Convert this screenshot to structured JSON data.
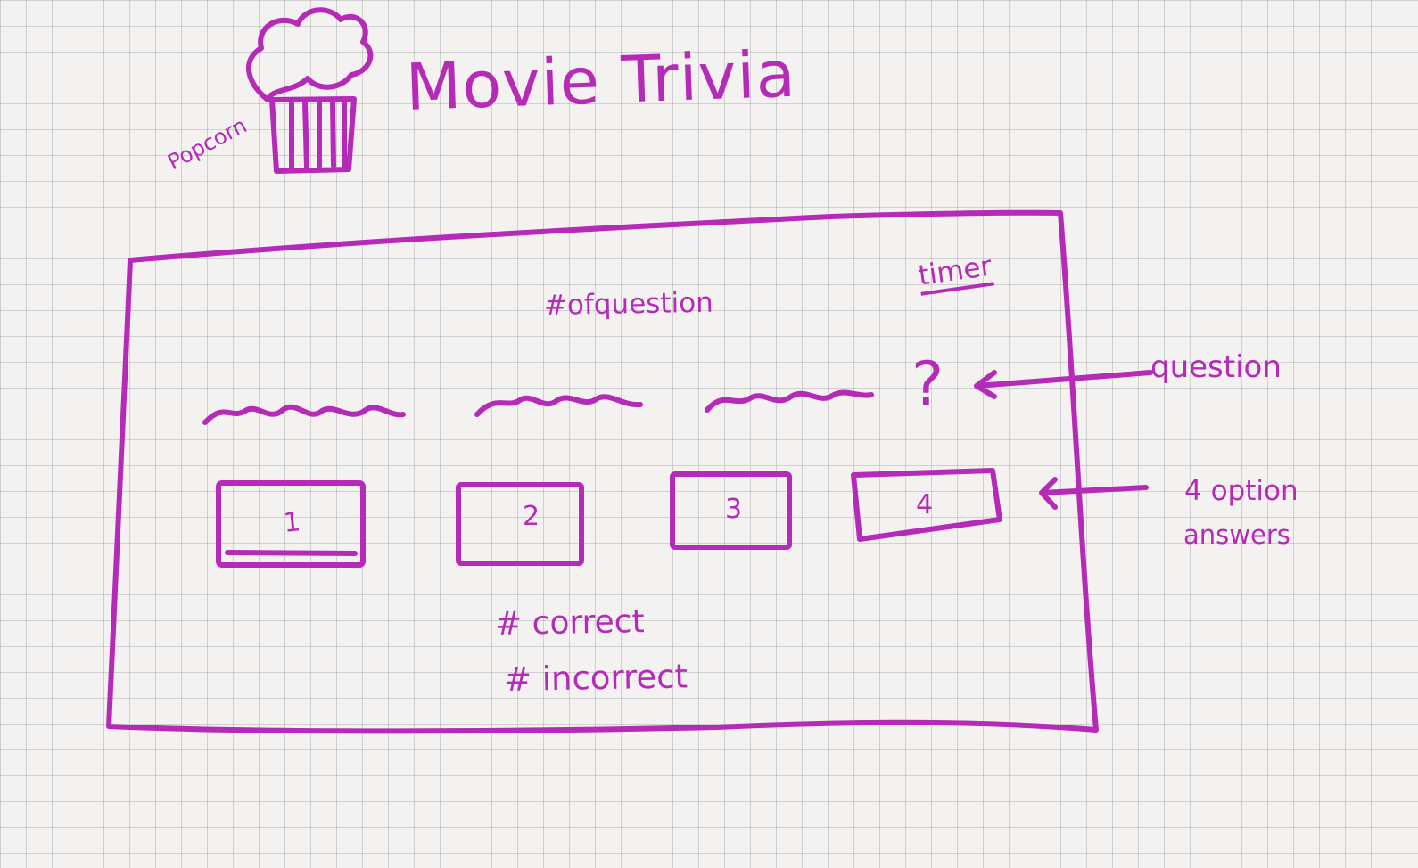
{
  "app": {
    "title": "Movie Trivia",
    "logo_label": "Popcorn"
  },
  "quiz_panel": {
    "question_count_label": "#ofquestion",
    "timer_label": "timer",
    "question_mark": "?",
    "options": [
      {
        "label": "1"
      },
      {
        "label": "2"
      },
      {
        "label": "3"
      },
      {
        "label": "4"
      }
    ],
    "correct_label": "# correct",
    "incorrect_label": "# incorrect"
  },
  "annotations": {
    "question": "question",
    "options_line_1": "4 option",
    "options_line_2": "answers"
  },
  "colors": {
    "ink": "#b52bb7",
    "paper": "#f3f2f0",
    "grid": "#8b8b92"
  },
  "icons": {
    "logo": "popcorn-bucket-icon",
    "question_pointer": "left-arrow-icon",
    "options_pointer": "left-arrow-icon"
  }
}
